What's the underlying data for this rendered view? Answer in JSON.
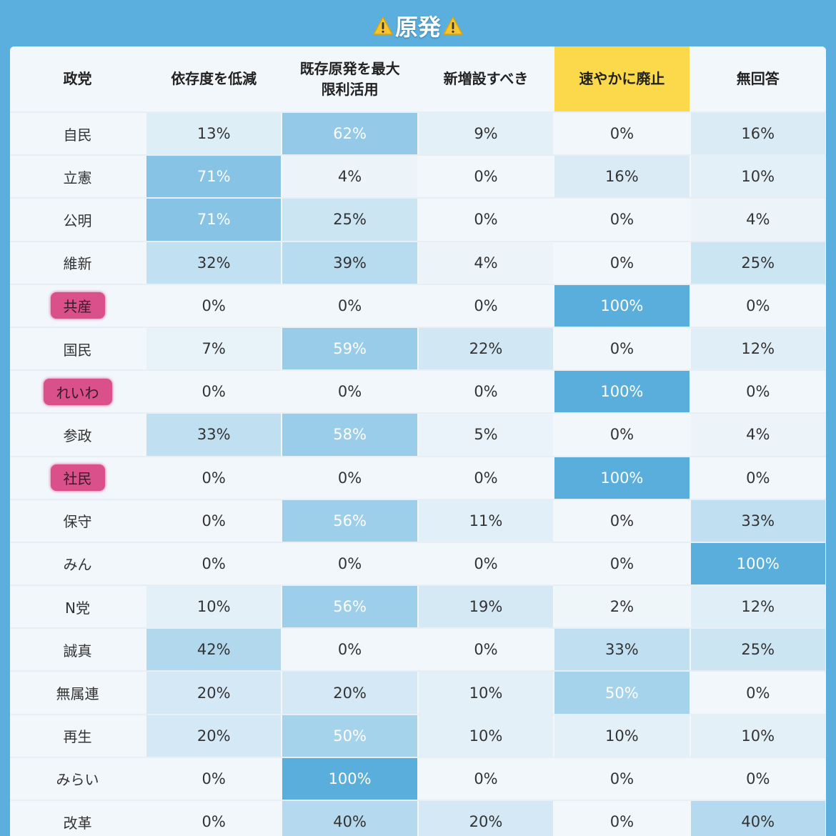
{
  "title": {
    "text": "原発"
  },
  "colors": {
    "background": "#5aafdf",
    "highlight_header": "#fbd94a",
    "party_marker": "#d9508a",
    "cell_scale_low": "#f2f7fb",
    "cell_scale_high": "#5aaedc"
  },
  "chart_data": {
    "type": "table",
    "columns": [
      "政党",
      "依存度を低減",
      "既存原発を最大\n限利活用",
      "新増設すべき",
      "速やかに廃止",
      "無回答"
    ],
    "highlighted_column": "速やかに廃止",
    "rows": [
      {
        "party": "自民",
        "values": [
          13,
          62,
          9,
          0,
          16
        ]
      },
      {
        "party": "立憲",
        "values": [
          71,
          4,
          0,
          16,
          10
        ]
      },
      {
        "party": "公明",
        "values": [
          71,
          25,
          0,
          0,
          4
        ]
      },
      {
        "party": "維新",
        "values": [
          32,
          39,
          4,
          0,
          25
        ]
      },
      {
        "party": "共産",
        "values": [
          0,
          0,
          0,
          100,
          0
        ],
        "marked": true
      },
      {
        "party": "国民",
        "values": [
          7,
          59,
          22,
          0,
          12
        ]
      },
      {
        "party": "れいわ",
        "values": [
          0,
          0,
          0,
          100,
          0
        ],
        "marked": true
      },
      {
        "party": "参政",
        "values": [
          33,
          58,
          5,
          0,
          4
        ]
      },
      {
        "party": "社民",
        "values": [
          0,
          0,
          0,
          100,
          0
        ],
        "marked": true
      },
      {
        "party": "保守",
        "values": [
          0,
          56,
          11,
          0,
          33
        ]
      },
      {
        "party": "みん",
        "values": [
          0,
          0,
          0,
          0,
          100
        ]
      },
      {
        "party": "N党",
        "values": [
          10,
          56,
          19,
          2,
          12
        ]
      },
      {
        "party": "誠真",
        "values": [
          42,
          0,
          0,
          33,
          25
        ]
      },
      {
        "party": "無属連",
        "values": [
          20,
          20,
          10,
          50,
          0
        ]
      },
      {
        "party": "再生",
        "values": [
          20,
          50,
          10,
          10,
          10
        ]
      },
      {
        "party": "みらい",
        "values": [
          0,
          100,
          0,
          0,
          0
        ]
      },
      {
        "party": "改革",
        "values": [
          0,
          40,
          20,
          0,
          40
        ]
      }
    ]
  }
}
